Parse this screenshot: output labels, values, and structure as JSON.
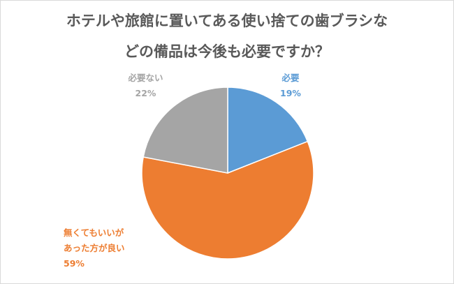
{
  "chart_data": {
    "type": "pie",
    "title_lines": [
      "ホテルや旅館に置いてある使い捨ての歯ブラシな",
      "どの備品は今後も必要ですか？"
    ],
    "start_angle": "12 o'clock",
    "direction": "clockwise",
    "slices": [
      {
        "label_lines": [
          "必要"
        ],
        "value": 19,
        "value_label": "19%",
        "color": "#5B9BD5"
      },
      {
        "label_lines": [
          "無くてもいいが",
          "あった方が良い"
        ],
        "value": 59,
        "value_label": "59%",
        "color": "#ED7D31"
      },
      {
        "label_lines": [
          "必要ない"
        ],
        "value": 22,
        "value_label": "22%",
        "color": "#A5A5A5"
      }
    ]
  }
}
